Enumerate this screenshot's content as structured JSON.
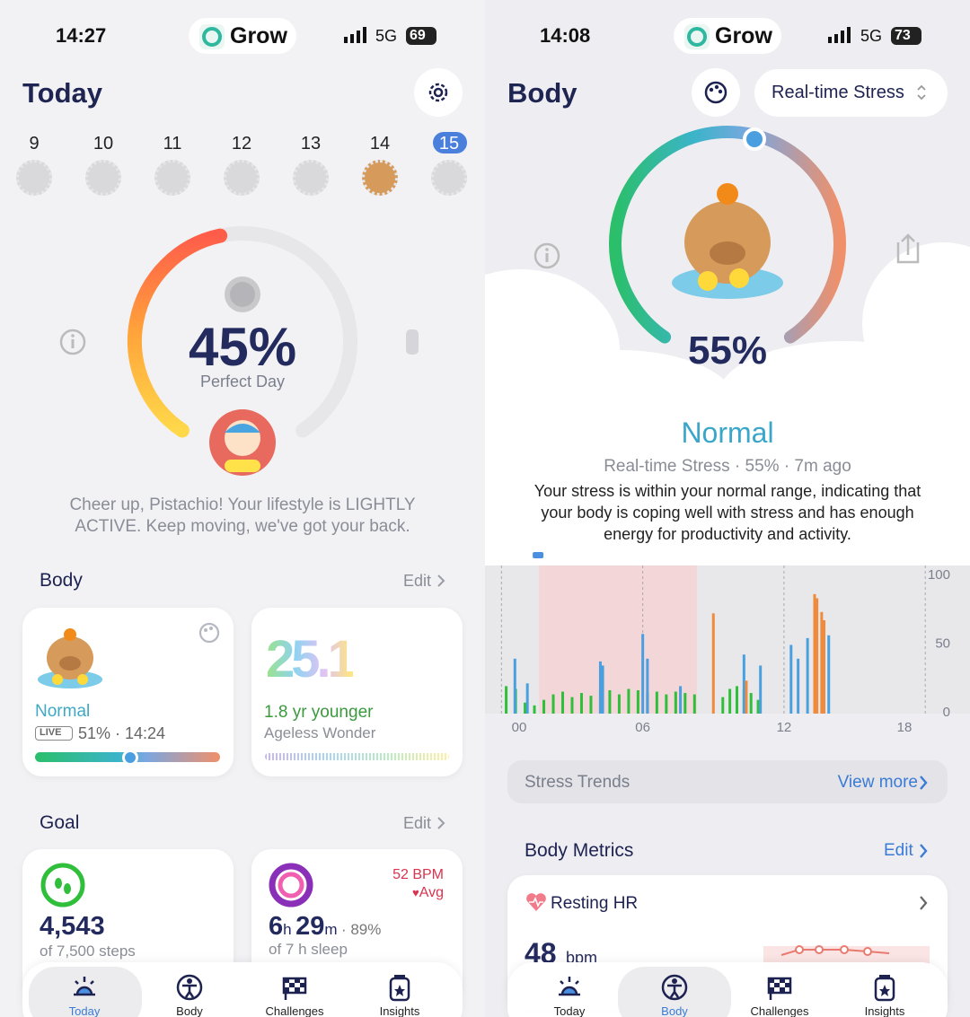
{
  "left": {
    "status": {
      "time": "14:27",
      "app": "Grow",
      "network": "5G",
      "battery": "69"
    },
    "title": "Today",
    "days": [
      "9",
      "10",
      "11",
      "12",
      "13",
      "14",
      "15"
    ],
    "score": "45%",
    "score_label": "Perfect Day",
    "message": [
      "Cheer up, Pistachio! Your lifestyle is LIGHTLY",
      "ACTIVE. Keep moving, we've got your back."
    ],
    "body": {
      "title": "Body",
      "edit": "Edit",
      "stress_card": {
        "status": "Normal",
        "live": "LIVE",
        "value": "51% · 14:24"
      },
      "age_card": {
        "value": "25.1",
        "title": "1.8 yr younger",
        "subtitle": "Ageless Wonder"
      }
    },
    "goal": {
      "title": "Goal",
      "edit": "Edit",
      "steps_card": {
        "value": "4,543",
        "subtitle": "of 7,500 steps"
      },
      "sleep_card": {
        "bpm": "52 BPM",
        "avg": "Avg",
        "hours": "6",
        "h": "h",
        "minutes": "29",
        "m": "m",
        "quality": "· 89%",
        "subtitle": "of 7 h sleep"
      }
    },
    "tabs": [
      "Today",
      "Body",
      "Challenges",
      "Insights"
    ]
  },
  "right": {
    "status": {
      "time": "14:08",
      "app": "Grow",
      "network": "5G",
      "battery": "73"
    },
    "title": "Body",
    "dropdown": "Real-time Stress",
    "score": "55%",
    "state": "Normal",
    "meta": "Real-time Stress · 55% · 7m ago",
    "description": [
      "Your stress is within your normal range, indicating that",
      "your body is coping well with stress and has enough",
      "energy for productivity and activity."
    ],
    "trends": {
      "title": "Stress Trends",
      "link": "View more"
    },
    "metrics": {
      "title": "Body Metrics",
      "edit": "Edit",
      "resting_hr": {
        "title": "Resting HR",
        "value": "48",
        "unit": "bpm"
      }
    },
    "tabs": [
      "Today",
      "Body",
      "Challenges",
      "Insights"
    ]
  },
  "chart_data": {
    "type": "bar",
    "xlim": [
      -0.7,
      19.9
    ],
    "ylim": [
      0,
      100
    ],
    "xticks": [
      {
        "value": 0,
        "label": "00"
      },
      {
        "value": 6,
        "label": "06"
      },
      12,
      18
    ],
    "yticks": [
      0,
      50,
      100
    ],
    "shaded_range": [
      1.6,
      8.3
    ],
    "shaded_color": "#f3d6d8",
    "series": [
      {
        "color": "#2fbf3a",
        "x": [
          0.2,
          0.6,
          1.0,
          1.4,
          1.8,
          2.2,
          2.6,
          3.0,
          3.4,
          3.8,
          4.2,
          4.6,
          5.0,
          5.4,
          5.8,
          6.2,
          6.6,
          7.0,
          7.4,
          7.8,
          8.2,
          9.4,
          9.7,
          10.0,
          10.3,
          10.6,
          10.9
        ],
        "values": [
          20,
          18,
          8,
          6,
          10,
          14,
          16,
          12,
          15,
          13,
          16,
          17,
          14,
          18,
          17,
          15,
          16,
          14,
          16,
          15,
          14,
          12,
          18,
          20,
          17,
          15,
          10
        ]
      },
      {
        "color": "#4a9fe0",
        "x": [
          0.57,
          1.1,
          4.2,
          4.3,
          6.0,
          6.2,
          7.6,
          10.3,
          11.0,
          12.3,
          12.6,
          13.0,
          13.9
        ],
        "values": [
          40,
          22,
          38,
          35,
          58,
          40,
          20,
          43,
          35,
          50,
          40,
          55,
          57
        ]
      },
      {
        "color": "#f08a3c",
        "x": [
          9.0,
          10.4,
          13.3,
          13.4,
          13.6,
          13.7
        ],
        "values": [
          73,
          24,
          87,
          84,
          74,
          68
        ]
      }
    ]
  }
}
